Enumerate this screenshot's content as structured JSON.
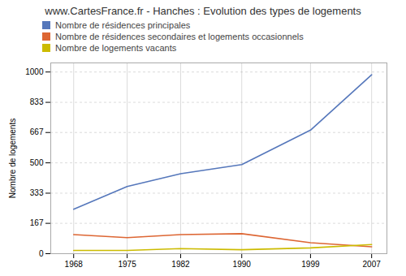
{
  "chart_data": {
    "type": "line",
    "title": "www.CartesFrance.fr - Hanches : Evolution des types de logements",
    "ylabel": "Nombre de logements",
    "x": [
      1968,
      1975,
      1982,
      1990,
      1999,
      2007
    ],
    "series": [
      {
        "name": "Nombre de résidences principales",
        "color": "#5577bb",
        "values": [
          245,
          370,
          440,
          490,
          680,
          985
        ]
      },
      {
        "name": "Nombre de résidences secondaires et logements occasionnels",
        "color": "#dd6633",
        "values": [
          105,
          88,
          105,
          110,
          60,
          38
        ]
      },
      {
        "name": "Nombre de logements vacants",
        "color": "#ccbb00",
        "values": [
          18,
          18,
          28,
          22,
          32,
          50
        ]
      }
    ],
    "xlim": [
      1965,
      2009
    ],
    "xticks": [
      1968,
      1975,
      1982,
      1990,
      1999,
      2007
    ],
    "ylim": [
      0,
      1050
    ],
    "yticks": [
      0,
      167,
      333,
      500,
      667,
      833,
      1000
    ],
    "grid": true,
    "legend": "upper left"
  }
}
